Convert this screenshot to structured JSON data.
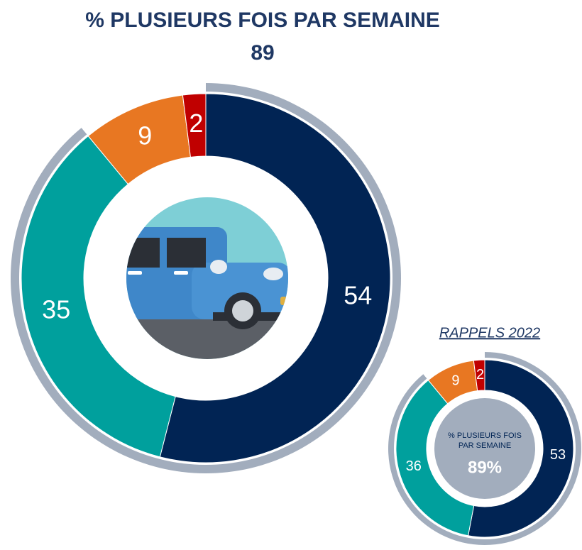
{
  "chart_data": [
    {
      "type": "donut",
      "title": "% PLUSIEURS FOIS PAR SEMAINE",
      "subtitle": 89,
      "values": [
        54,
        35,
        9,
        2
      ],
      "colors": [
        "#012454",
        "#00a09d",
        "#e87722",
        "#c00000"
      ],
      "summary_color": "#a2adbd"
    },
    {
      "type": "donut",
      "title": "RAPPELS 2022",
      "center_text": "% PLUSIEURS FOIS PAR SEMAINE",
      "summary_value": 89,
      "summary_label": "89%",
      "values": [
        53,
        36,
        9,
        2
      ],
      "colors": [
        "#012454",
        "#00a09d",
        "#e87722",
        "#c00000"
      ],
      "summary_color": "#a2adbd"
    }
  ]
}
